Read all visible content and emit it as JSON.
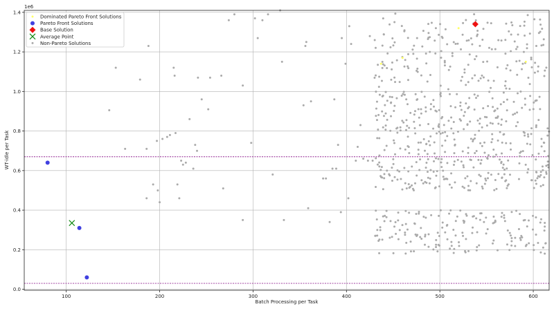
{
  "chart_data": {
    "type": "scatter",
    "title": "",
    "xlabel": "Batch Processing per Task",
    "ylabel": "WT-idle per Task",
    "y_offset_text": "1e6",
    "xlim": [
      55,
      617
    ],
    "ylim": [
      -5000,
      1410000
    ],
    "x_ticks": [
      100,
      200,
      300,
      400,
      500,
      600
    ],
    "y_ticks": [
      0,
      200000,
      400000,
      600000,
      800000,
      1000000,
      1200000,
      1400000
    ],
    "y_tick_labels": [
      "0.0",
      "0.2",
      "0.4",
      "0.6",
      "0.8",
      "1.0",
      "1.2",
      "1.4"
    ],
    "grid": true,
    "legend_position": "top-left",
    "reference_lines": [
      {
        "y": 670000,
        "color": "#800080",
        "style": "dashed"
      },
      {
        "y": 30000,
        "color": "#800080",
        "style": "dashed"
      }
    ],
    "series": [
      {
        "name": "Dominated Pareto Front Solutions",
        "marker": "dot",
        "color": "#ffff66",
        "points": [
          [
            437,
            1140000
          ],
          [
            460,
            1170000
          ],
          [
            520,
            1320000
          ],
          [
            592,
            1150000
          ]
        ]
      },
      {
        "name": "Pareto Front Solutions",
        "marker": "circle",
        "color": "#4040e0",
        "points": [
          [
            80,
            640000
          ],
          [
            114,
            310000
          ],
          [
            122,
            60000
          ]
        ]
      },
      {
        "name": "Base Solution",
        "marker": "diamond",
        "color": "#ee1111",
        "points": [
          [
            538,
            1340000
          ]
        ]
      },
      {
        "name": "Average Point",
        "marker": "x",
        "color": "#118811",
        "points": [
          [
            106,
            335000
          ]
        ]
      },
      {
        "name": "Non-Pareto Solutions",
        "marker": "dot",
        "color": "#aaaaaa",
        "generator": {
          "seed": 7,
          "points": [
            [
              146,
              905000
            ],
            [
              153,
              1120000
            ],
            [
              163,
              710000
            ],
            [
              179,
              1060000
            ],
            [
              186,
              460000
            ],
            [
              186,
              710000
            ],
            [
              188,
              1230000
            ],
            [
              193,
              530000
            ],
            [
              197,
              750000
            ],
            [
              198,
              500000
            ],
            [
              200,
              440000
            ],
            [
              203,
              760000
            ],
            [
              208,
              770000
            ],
            [
              211,
              780000
            ],
            [
              215,
              1120000
            ],
            [
              216,
              1080000
            ],
            [
              217,
              790000
            ],
            [
              219,
              530000
            ],
            [
              221,
              460000
            ],
            [
              223,
              650000
            ],
            [
              225,
              630000
            ],
            [
              228,
              640000
            ],
            [
              232,
              860000
            ],
            [
              236,
              610000
            ],
            [
              238,
              730000
            ],
            [
              240,
              700000
            ],
            [
              241,
              1070000
            ],
            [
              245,
              960000
            ],
            [
              252,
              910000
            ],
            [
              254,
              1070000
            ],
            [
              266,
              1080000
            ],
            [
              268,
              510000
            ],
            [
              274,
              1360000
            ],
            [
              280,
              1390000
            ],
            [
              289,
              350000
            ],
            [
              289,
              1030000
            ],
            [
              298,
              740000
            ],
            [
              302,
              1370000
            ],
            [
              305,
              1270000
            ],
            [
              310,
              1360000
            ],
            [
              316,
              1390000
            ],
            [
              321,
              580000
            ],
            [
              329,
              1410000
            ],
            [
              331,
              1150000
            ],
            [
              333,
              350000
            ],
            [
              354,
              930000
            ],
            [
              356,
              1230000
            ],
            [
              357,
              1250000
            ],
            [
              359,
              410000
            ],
            [
              362,
              950000
            ],
            [
              375,
              560000
            ],
            [
              378,
              560000
            ],
            [
              382,
              340000
            ],
            [
              385,
              610000
            ],
            [
              387,
              960000
            ],
            [
              389,
              610000
            ],
            [
              391,
              730000
            ],
            [
              394,
              390000
            ],
            [
              395,
              1270000
            ],
            [
              399,
              1140000
            ],
            [
              402,
              460000
            ],
            [
              403,
              1330000
            ],
            [
              405,
              1240000
            ],
            [
              410,
              650000
            ],
            [
              412,
              720000
            ],
            [
              415,
              830000
            ],
            [
              418,
              660000
            ],
            [
              423,
              650000
            ],
            [
              425,
              1280000
            ],
            [
              428,
              650000
            ],
            [
              431,
              270000
            ],
            [
              433,
              300000
            ]
          ],
          "clusters": [
            {
              "x": [
                430,
                617
              ],
              "y": [
                180000,
                400000
              ],
              "count": 170
            },
            {
              "x": [
                430,
                617
              ],
              "y": [
                500000,
                1000000
              ],
              "count": 420
            },
            {
              "x": [
                430,
                617
              ],
              "y": [
                1000000,
                1400000
              ],
              "count": 190
            }
          ]
        }
      }
    ]
  }
}
